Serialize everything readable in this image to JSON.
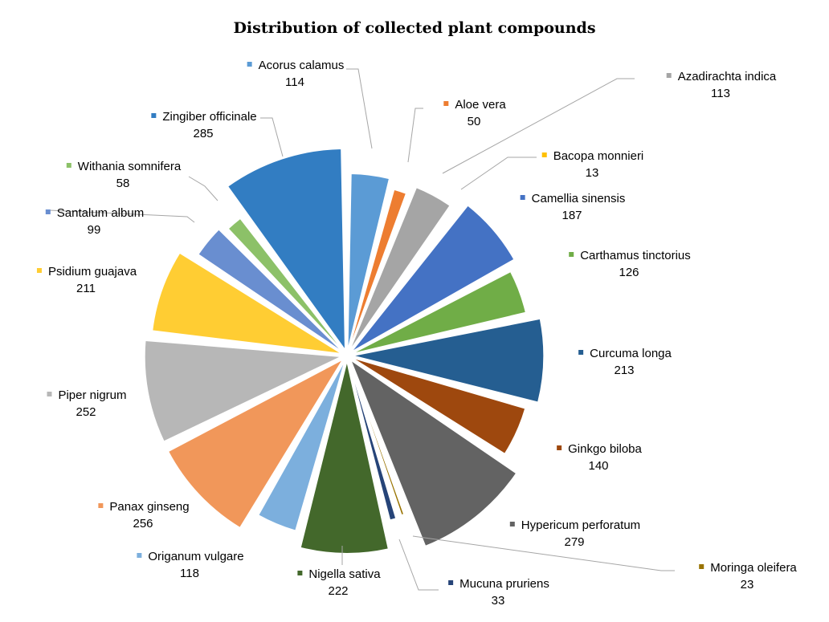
{
  "chart_data": {
    "type": "pie",
    "title": "Distribution of collected plant compounds",
    "categories": [
      "Acorus calamus",
      "Aloe vera",
      "Azadirachta indica",
      "Bacopa monnieri",
      "Camellia sinensis",
      "Carthamus tinctorius",
      "Curcuma longa",
      "Ginkgo biloba",
      "Hypericum perforatum",
      "Moringa oleifera",
      "Mucuna pruriens",
      "Nigella sativa",
      "Origanum vulgare",
      "Panax ginseng",
      "Piper nigrum",
      "Psidium guajava",
      "Santalum album",
      "Withania somnifera",
      "Zingiber officinale"
    ],
    "values": [
      114,
      50,
      113,
      13,
      187,
      126,
      213,
      140,
      279,
      23,
      33,
      222,
      118,
      256,
      252,
      211,
      99,
      58,
      285
    ],
    "colors": [
      "#5B9BD5",
      "#ED7D31",
      "#A5A5A5",
      "#FFC000",
      "#4472C4",
      "#70AD47",
      "#255E91",
      "#9E480E",
      "#636363",
      "#997300",
      "#264478",
      "#43682B",
      "#7CAFDD",
      "#F1975A",
      "#B7B7B7",
      "#FFCD33",
      "#698ED0",
      "#8CC168",
      "#327DC2"
    ],
    "legend": "none",
    "data_labels": "category-name-and-value"
  }
}
